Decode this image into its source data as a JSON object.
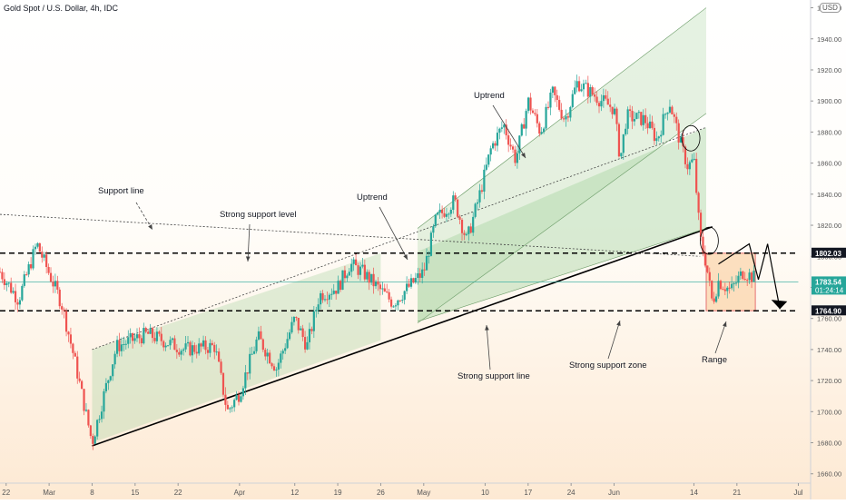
{
  "header": {
    "symbol_line": "Gold Spot / U.S. Dollar, 4h, IDC",
    "currency_badge": "USD"
  },
  "colors": {
    "up": "#26a69a",
    "down": "#ef5350",
    "channel_fill": "#a8d5a3",
    "range_fill": "#fbd3a8",
    "range_stroke": "#e57373"
  },
  "chart_data": {
    "type": "candlestick",
    "y_axis": {
      "range": [
        1654,
        1965
      ],
      "ticks": [
        1660,
        1680,
        1700,
        1720,
        1740,
        1760,
        1780,
        1800,
        1820,
        1840,
        1860,
        1880,
        1900,
        1920,
        1940,
        1960
      ]
    },
    "x_axis": {
      "range_days": [
        -6,
        126
      ],
      "tick_labels": [
        "22",
        "Mar",
        "8",
        "15",
        "22",
        "Apr",
        "12",
        "19",
        "26",
        "May",
        "10",
        "17",
        "24",
        "Jun",
        "14",
        "21",
        "Jul"
      ],
      "tick_days": [
        -5,
        2,
        9,
        16,
        23,
        33,
        42,
        49,
        56,
        63,
        73,
        80,
        87,
        94,
        107,
        114,
        124
      ]
    },
    "price_labels": [
      {
        "text": "1802.03",
        "value": 1802.03,
        "bg": "#131722"
      },
      {
        "text": "1783.54",
        "text2": "01:24:14",
        "value": 1783.54,
        "bg": "#26a69a"
      },
      {
        "text": "1764.90",
        "value": 1764.9,
        "bg": "#131722"
      }
    ],
    "horizontal_levels": [
      1802.03,
      1764.9
    ],
    "anchors": [
      [
        -6,
        1790
      ],
      [
        -3,
        1772
      ],
      [
        0,
        1808
      ],
      [
        4,
        1770
      ],
      [
        6,
        1736
      ],
      [
        9,
        1680
      ],
      [
        11,
        1712
      ],
      [
        13,
        1742
      ],
      [
        18,
        1750
      ],
      [
        24,
        1740
      ],
      [
        29,
        1742
      ],
      [
        31,
        1700
      ],
      [
        33,
        1712
      ],
      [
        36,
        1748
      ],
      [
        39,
        1728
      ],
      [
        42,
        1760
      ],
      [
        44,
        1742
      ],
      [
        46,
        1775
      ],
      [
        49,
        1780
      ],
      [
        51,
        1795
      ],
      [
        53,
        1790
      ],
      [
        56,
        1778
      ],
      [
        58,
        1770
      ],
      [
        60,
        1778
      ],
      [
        63,
        1790
      ],
      [
        65,
        1824
      ],
      [
        68,
        1836
      ],
      [
        70,
        1810
      ],
      [
        72,
        1838
      ],
      [
        74,
        1870
      ],
      [
        76,
        1885
      ],
      [
        78,
        1862
      ],
      [
        80,
        1900
      ],
      [
        82,
        1880
      ],
      [
        84,
        1905
      ],
      [
        86,
        1888
      ],
      [
        88,
        1912
      ],
      [
        90,
        1906
      ],
      [
        92,
        1900
      ],
      [
        94,
        1895
      ],
      [
        95,
        1862
      ],
      [
        96,
        1890
      ],
      [
        99,
        1888
      ],
      [
        101,
        1875
      ],
      [
        103,
        1900
      ],
      [
        105,
        1870
      ],
      [
        106,
        1858
      ],
      [
        107,
        1862
      ],
      [
        108,
        1812
      ],
      [
        109,
        1795
      ],
      [
        110,
        1770
      ],
      [
        111,
        1784
      ],
      [
        113,
        1778
      ],
      [
        115,
        1790
      ],
      [
        117,
        1786
      ]
    ],
    "annotations": [
      "Support line",
      "Strong support level",
      "Uptrend",
      "Uptrend",
      "Strong support line",
      "Strong support zone",
      "Range"
    ]
  }
}
